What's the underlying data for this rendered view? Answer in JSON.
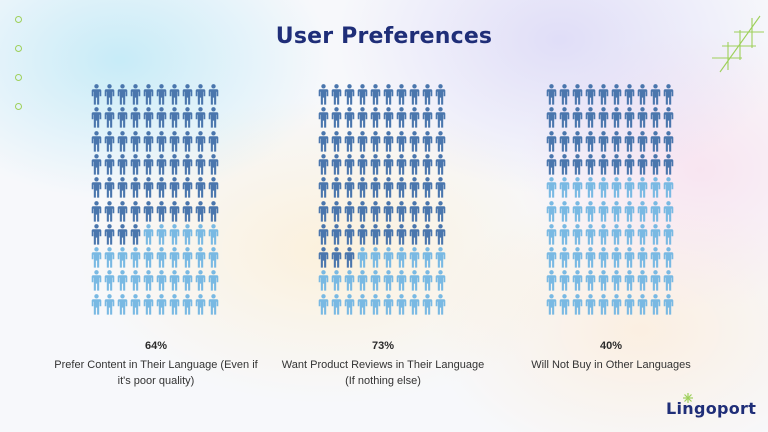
{
  "title": "User Preferences",
  "brand": {
    "name": "Lingoport"
  },
  "colors": {
    "title": "#1f2e78",
    "person_dark": "#4a76ad",
    "person_light": "#79b9e3",
    "accent_green": "#9ed05a"
  },
  "icons": {
    "person": "person-icon",
    "bullet": "circle-outline-icon"
  },
  "panels": [
    {
      "percent_label": "64%",
      "description": "Prefer Content in Their Language (Even if it's poor quality)",
      "percent": 64
    },
    {
      "percent_label": "73%",
      "description": "Want Product Reviews in Their Language (If nothing else)",
      "percent": 73
    },
    {
      "percent_label": "40%",
      "description": "Will Not Buy in Other Languages",
      "percent": 40
    }
  ]
}
